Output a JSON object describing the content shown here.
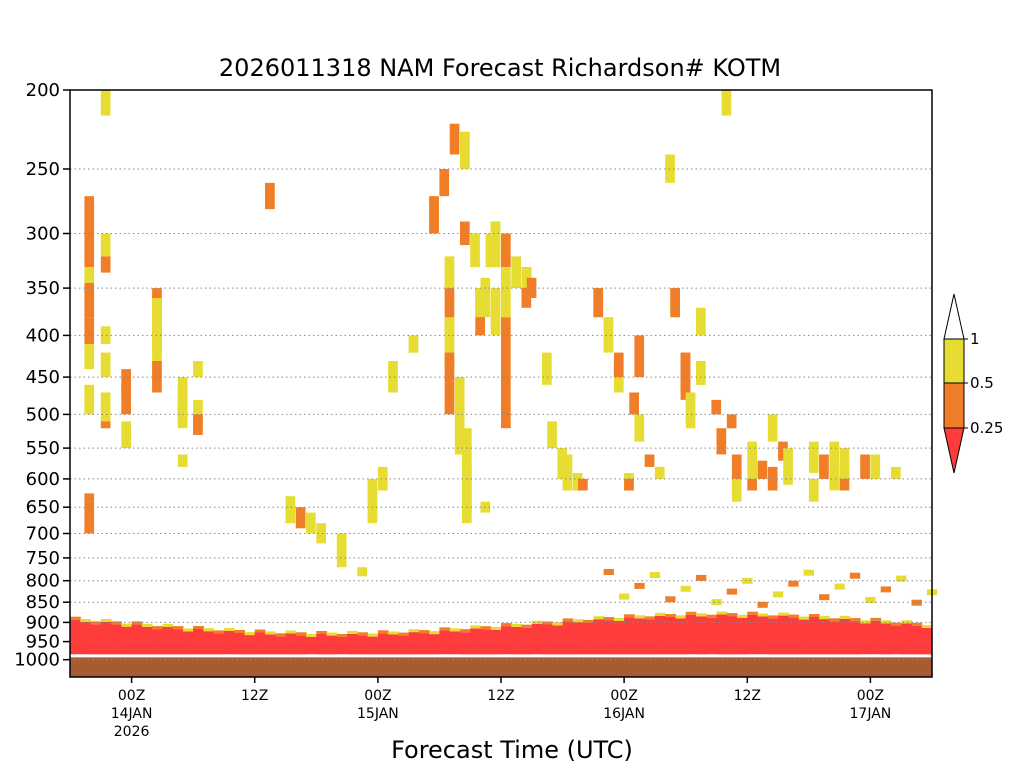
{
  "chart_data": {
    "type": "heatmap",
    "title": "2026011318 NAM Forecast Richardson# KOTM",
    "xlabel": "Forecast Time (UTC)",
    "ylabel": "",
    "y_axis": {
      "unit": "hPa",
      "scale": "log-pressure",
      "inverted": true,
      "range": [
        200,
        1050
      ],
      "ticks": [
        200,
        250,
        300,
        350,
        400,
        450,
        500,
        550,
        600,
        650,
        700,
        750,
        800,
        850,
        900,
        950,
        1000
      ]
    },
    "x_axis": {
      "unit": "hours since 2026-01-13 18Z",
      "range": [
        0,
        84
      ],
      "ticks": [
        {
          "hour": 6,
          "lines": [
            "00Z",
            "14JAN",
            "2026"
          ]
        },
        {
          "hour": 18,
          "lines": [
            "12Z"
          ]
        },
        {
          "hour": 30,
          "lines": [
            "00Z",
            "15JAN"
          ]
        },
        {
          "hour": 42,
          "lines": [
            "12Z"
          ]
        },
        {
          "hour": 54,
          "lines": [
            "00Z",
            "16JAN"
          ]
        },
        {
          "hour": 66,
          "lines": [
            "12Z"
          ]
        },
        {
          "hour": 78,
          "lines": [
            "00Z",
            "17JAN"
          ]
        }
      ]
    },
    "grid": {
      "horizontal_dotted": true,
      "vertical": false
    },
    "legend": {
      "placement": "right",
      "colors": [
        "#ff3c3c",
        "#f07e28",
        "#e6dc32",
        "#ffffff"
      ],
      "labels": [
        "0.25",
        "0.5",
        "1"
      ]
    },
    "surface_color": "#a85a30",
    "surface_pressure": 985,
    "bins_note": "0 = <0.25 (red), 1 = 0.25-0.5 (orange), 2 = 0.5-1 (yellow)",
    "cells": [
      [
        1,
        270,
        330,
        0
      ],
      [
        2,
        330,
        345,
        1
      ],
      [
        1,
        345,
        380,
        0
      ],
      [
        1,
        380,
        410,
        1
      ],
      [
        2,
        410,
        440,
        2
      ],
      [
        2,
        460,
        500,
        2
      ],
      [
        1,
        625,
        640,
        2
      ],
      [
        1,
        640,
        700,
        0
      ],
      [
        2,
        200,
        215,
        2
      ],
      [
        2,
        300,
        320,
        2
      ],
      [
        1,
        320,
        335,
        0
      ],
      [
        2,
        390,
        410,
        2
      ],
      [
        2,
        420,
        450,
        2
      ],
      [
        2,
        470,
        510,
        2
      ],
      [
        1,
        510,
        520,
        1
      ],
      [
        2,
        510,
        550,
        2
      ],
      [
        1,
        460,
        500,
        1
      ],
      [
        1,
        440,
        470,
        0
      ],
      [
        1,
        390,
        420,
        2
      ],
      [
        1,
        350,
        420,
        1
      ],
      [
        2,
        360,
        420,
        0
      ],
      [
        2,
        400,
        450,
        2
      ],
      [
        1,
        430,
        470,
        1
      ],
      [
        2,
        480,
        520,
        2
      ],
      [
        2,
        460,
        510,
        1
      ],
      [
        2,
        560,
        580,
        2
      ],
      [
        2,
        450,
        500,
        2
      ],
      [
        2,
        480,
        510,
        1
      ],
      [
        2,
        430,
        450,
        2
      ],
      [
        2,
        480,
        510,
        2
      ],
      [
        1,
        500,
        530,
        1
      ],
      [
        2,
        260,
        280,
        2
      ],
      [
        1,
        260,
        280,
        0
      ],
      [
        2,
        630,
        680,
        2
      ],
      [
        2,
        640,
        680,
        2
      ],
      [
        1,
        650,
        690,
        2
      ],
      [
        2,
        660,
        700,
        2
      ],
      [
        2,
        680,
        720,
        2
      ],
      [
        2,
        700,
        770,
        2
      ],
      [
        2,
        770,
        790,
        2
      ],
      [
        2,
        600,
        680,
        2
      ],
      [
        2,
        580,
        620,
        2
      ],
      [
        2,
        430,
        470,
        2
      ],
      [
        2,
        400,
        420,
        2
      ],
      [
        2,
        270,
        300,
        2
      ],
      [
        1,
        270,
        300,
        0
      ],
      [
        1,
        250,
        270,
        1
      ],
      [
        1,
        220,
        240,
        1
      ],
      [
        2,
        225,
        250,
        2
      ],
      [
        1,
        290,
        310,
        1
      ],
      [
        2,
        300,
        330,
        2
      ],
      [
        2,
        340,
        380,
        2
      ],
      [
        2,
        350,
        400,
        1
      ],
      [
        1,
        380,
        520,
        0
      ],
      [
        1,
        350,
        400,
        1
      ],
      [
        2,
        320,
        350,
        2
      ],
      [
        2,
        380,
        440,
        2
      ],
      [
        1,
        420,
        500,
        1
      ],
      [
        2,
        450,
        560,
        2
      ],
      [
        2,
        520,
        620,
        2
      ],
      [
        2,
        580,
        660,
        2
      ],
      [
        2,
        620,
        680,
        2
      ],
      [
        1,
        350,
        400,
        0
      ],
      [
        2,
        350,
        380,
        1
      ],
      [
        2,
        300,
        330,
        2
      ],
      [
        2,
        290,
        330,
        1
      ],
      [
        1,
        300,
        330,
        1
      ],
      [
        2,
        290,
        310,
        2
      ],
      [
        2,
        330,
        380,
        2
      ],
      [
        2,
        320,
        350,
        1
      ],
      [
        1,
        330,
        360,
        1
      ],
      [
        1,
        330,
        370,
        0
      ],
      [
        2,
        330,
        350,
        2
      ],
      [
        1,
        340,
        360,
        1
      ],
      [
        2,
        420,
        460,
        2
      ],
      [
        2,
        510,
        550,
        2
      ],
      [
        2,
        550,
        600,
        2
      ],
      [
        2,
        560,
        620,
        2
      ],
      [
        2,
        590,
        620,
        2
      ],
      [
        1,
        600,
        620,
        0
      ],
      [
        2,
        350,
        380,
        2
      ],
      [
        1,
        350,
        380,
        1
      ],
      [
        2,
        380,
        420,
        2
      ],
      [
        2,
        430,
        470,
        2
      ],
      [
        1,
        420,
        450,
        1
      ],
      [
        2,
        590,
        620,
        2
      ],
      [
        1,
        600,
        620,
        0
      ],
      [
        1,
        470,
        500,
        1
      ],
      [
        2,
        500,
        540,
        2
      ],
      [
        1,
        400,
        450,
        0
      ],
      [
        2,
        560,
        580,
        2
      ],
      [
        1,
        560,
        580,
        1
      ],
      [
        2,
        580,
        600,
        2
      ],
      [
        2,
        240,
        260,
        2
      ],
      [
        2,
        350,
        380,
        2
      ],
      [
        1,
        350,
        380,
        1
      ],
      [
        1,
        420,
        480,
        0
      ],
      [
        1,
        420,
        470,
        1
      ],
      [
        2,
        470,
        520,
        2
      ],
      [
        2,
        370,
        400,
        2
      ],
      [
        2,
        430,
        460,
        2
      ],
      [
        1,
        480,
        500,
        2
      ],
      [
        1,
        520,
        560,
        2
      ],
      [
        2,
        200,
        215,
        2
      ],
      [
        1,
        500,
        520,
        2
      ],
      [
        1,
        560,
        600,
        1
      ],
      [
        2,
        600,
        640,
        2
      ],
      [
        1,
        600,
        620,
        0
      ],
      [
        2,
        540,
        600,
        2
      ],
      [
        1,
        570,
        600,
        1
      ],
      [
        1,
        580,
        620,
        2
      ],
      [
        2,
        500,
        540,
        2
      ],
      [
        1,
        540,
        570,
        1
      ],
      [
        2,
        550,
        610,
        2
      ],
      [
        2,
        600,
        640,
        2
      ],
      [
        2,
        540,
        590,
        2
      ],
      [
        1,
        560,
        600,
        1
      ],
      [
        2,
        540,
        580,
        1
      ],
      [
        2,
        580,
        620,
        2
      ],
      [
        1,
        580,
        620,
        1
      ],
      [
        2,
        550,
        600,
        2
      ],
      [
        1,
        560,
        600,
        1
      ],
      [
        2,
        560,
        600,
        2
      ],
      [
        2,
        580,
        600,
        2
      ],
      [
        2,
        640,
        660,
        2
      ]
    ],
    "bl_layers": [
      [
        900,
        960,
        0
      ],
      [
        880,
        900,
        2
      ],
      [
        870,
        890,
        1
      ],
      [
        890,
        960,
        0
      ],
      [
        880,
        890,
        2
      ],
      [
        870,
        880,
        1
      ],
      [
        905,
        950,
        0
      ],
      [
        890,
        905,
        2
      ],
      [
        930,
        960,
        0
      ],
      [
        920,
        940,
        1
      ],
      [
        880,
        960,
        0
      ],
      [
        860,
        880,
        2
      ],
      [
        820,
        850,
        0
      ],
      [
        830,
        850,
        1
      ],
      [
        850,
        870,
        2
      ]
    ]
  }
}
